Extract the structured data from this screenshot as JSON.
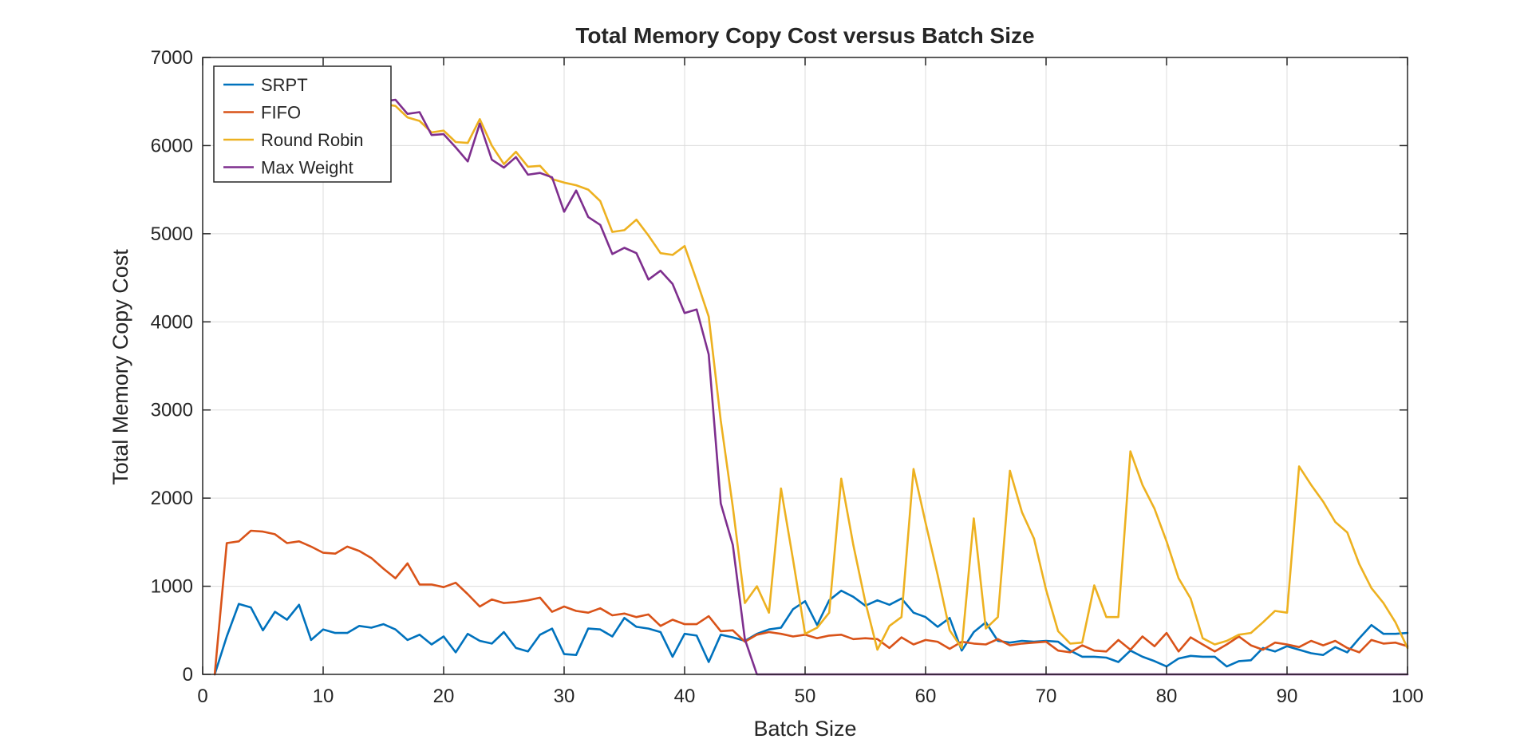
{
  "chart_data": {
    "type": "line",
    "title": "Total Memory Copy Cost versus Batch Size",
    "xlabel": "Batch Size",
    "ylabel": "Total Memory Copy Cost",
    "xlim": [
      0,
      100
    ],
    "ylim": [
      0,
      7000
    ],
    "xticks": [
      0,
      10,
      20,
      30,
      40,
      50,
      60,
      70,
      80,
      90,
      100
    ],
    "yticks": [
      0,
      1000,
      2000,
      3000,
      4000,
      5000,
      6000,
      7000
    ],
    "xtick_labels": [
      "0",
      "10",
      "20",
      "30",
      "40",
      "50",
      "60",
      "70",
      "80",
      "90",
      "100"
    ],
    "ytick_labels": [
      "0",
      "1000",
      "2000",
      "3000",
      "4000",
      "5000",
      "6000",
      "7000"
    ],
    "grid": true,
    "legend_position": "top-left",
    "x": [
      1,
      2,
      3,
      4,
      5,
      6,
      7,
      8,
      9,
      10,
      11,
      12,
      13,
      14,
      15,
      16,
      17,
      18,
      19,
      20,
      21,
      22,
      23,
      24,
      25,
      26,
      27,
      28,
      29,
      30,
      31,
      32,
      33,
      34,
      35,
      36,
      37,
      38,
      39,
      40,
      41,
      42,
      43,
      44,
      45,
      46,
      47,
      48,
      49,
      50,
      51,
      52,
      53,
      54,
      55,
      56,
      57,
      58,
      59,
      60,
      61,
      62,
      63,
      64,
      65,
      66,
      67,
      68,
      69,
      70,
      71,
      72,
      73,
      74,
      75,
      76,
      77,
      78,
      79,
      80,
      81,
      82,
      83,
      84,
      85,
      86,
      87,
      88,
      89,
      90,
      91,
      92,
      93,
      94,
      95,
      96,
      97,
      98,
      99,
      100
    ],
    "series": [
      {
        "name": "SRPT",
        "color": "#0072BD",
        "values": [
          0,
          430,
          800,
          760,
          500,
          710,
          620,
          790,
          390,
          510,
          470,
          470,
          550,
          530,
          570,
          510,
          390,
          450,
          340,
          430,
          250,
          460,
          380,
          350,
          480,
          300,
          260,
          450,
          520,
          230,
          220,
          520,
          510,
          430,
          640,
          540,
          520,
          480,
          200,
          460,
          440,
          140,
          450,
          420,
          380,
          460,
          510,
          530,
          740,
          830,
          560,
          840,
          950,
          880,
          780,
          840,
          790,
          860,
          700,
          650,
          540,
          640,
          270,
          480,
          590,
          380,
          360,
          380,
          370,
          380,
          370,
          270,
          200,
          200,
          190,
          140,
          270,
          200,
          150,
          90,
          180,
          210,
          200,
          200,
          90,
          150,
          160,
          300,
          260,
          320,
          280,
          240,
          220,
          310,
          250,
          410,
          560,
          460,
          460,
          470
        ]
      },
      {
        "name": "FIFO",
        "color": "#D95319",
        "values": [
          0,
          1490,
          1510,
          1630,
          1620,
          1590,
          1490,
          1510,
          1450,
          1380,
          1370,
          1450,
          1400,
          1320,
          1200,
          1090,
          1260,
          1020,
          1020,
          990,
          1040,
          910,
          770,
          850,
          810,
          820,
          840,
          870,
          710,
          770,
          720,
          700,
          750,
          670,
          690,
          650,
          680,
          550,
          620,
          570,
          570,
          660,
          490,
          500,
          370,
          450,
          480,
          460,
          430,
          450,
          410,
          440,
          450,
          400,
          410,
          400,
          300,
          420,
          340,
          390,
          370,
          290,
          370,
          350,
          340,
          400,
          330,
          350,
          360,
          370,
          270,
          250,
          330,
          270,
          260,
          390,
          280,
          430,
          320,
          470,
          260,
          420,
          340,
          260,
          340,
          430,
          330,
          280,
          360,
          340,
          310,
          380,
          330,
          380,
          300,
          250,
          390,
          350,
          360,
          320
        ]
      },
      {
        "name": "Round Robin",
        "color": "#EDB120",
        "values": [
          6650,
          6650,
          6650,
          6650,
          6650,
          6600,
          6580,
          6560,
          6540,
          6520,
          6510,
          6500,
          6490,
          6480,
          6470,
          6450,
          6320,
          6280,
          6150,
          6170,
          6040,
          6030,
          6300,
          6000,
          5790,
          5930,
          5760,
          5770,
          5620,
          5580,
          5550,
          5500,
          5370,
          5020,
          5040,
          5160,
          4980,
          4780,
          4760,
          4860,
          4470,
          4060,
          2880,
          1900,
          810,
          1000,
          700,
          2110,
          1300,
          460,
          530,
          700,
          2220,
          1470,
          820,
          280,
          550,
          650,
          2330,
          1720,
          1130,
          500,
          300,
          1770,
          520,
          650,
          2310,
          1840,
          1540,
          960,
          490,
          350,
          360,
          1010,
          650,
          650,
          2530,
          2150,
          1880,
          1510,
          1090,
          860,
          410,
          340,
          380,
          450,
          470,
          590,
          720,
          700,
          2360,
          2150,
          1960,
          1730,
          1610,
          1250,
          980,
          810,
          590,
          300
        ]
      },
      {
        "name": "Max Weight",
        "color": "#7E2F8E",
        "values": [
          6650,
          6650,
          6650,
          6650,
          6650,
          6620,
          6600,
          6580,
          6560,
          6550,
          6540,
          6530,
          6520,
          6510,
          6500,
          6520,
          6360,
          6380,
          6120,
          6130,
          5980,
          5820,
          6250,
          5840,
          5750,
          5870,
          5670,
          5690,
          5640,
          5250,
          5490,
          5190,
          5100,
          4770,
          4840,
          4780,
          4480,
          4580,
          4430,
          4100,
          4140,
          3630,
          1940,
          1470,
          400,
          0,
          0,
          0,
          0,
          0,
          0,
          0,
          0,
          0,
          0,
          0,
          0,
          0,
          0,
          0,
          0,
          0,
          0,
          0,
          0,
          0,
          0,
          0,
          0,
          0,
          0,
          0,
          0,
          0,
          0,
          0,
          0,
          0,
          0,
          0,
          0,
          0,
          0,
          0,
          0,
          0,
          0,
          0,
          0,
          0,
          0,
          0,
          0,
          0,
          0,
          0,
          0,
          0,
          0,
          0
        ]
      }
    ]
  }
}
